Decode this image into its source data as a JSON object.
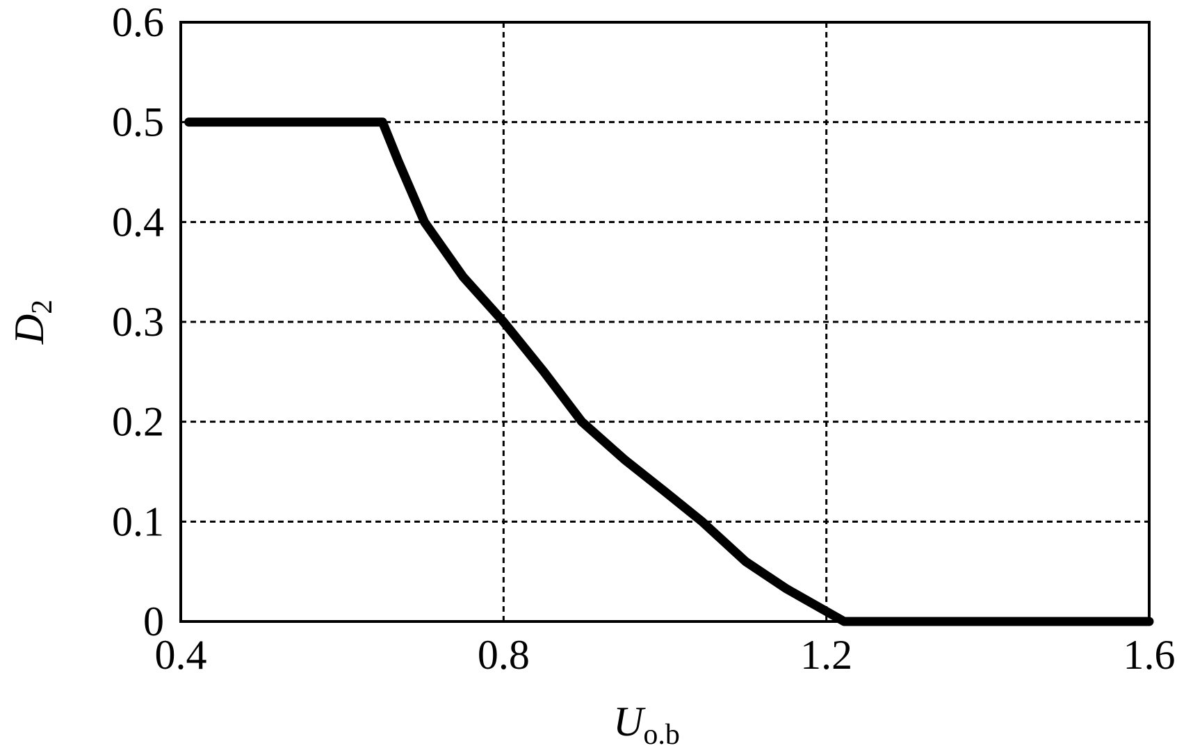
{
  "chart_data": {
    "type": "line",
    "xlabel": "U",
    "xlabel_sub": "o.b",
    "ylabel": "D",
    "ylabel_sub": "2",
    "x": [
      0.41,
      0.65,
      0.67,
      0.702,
      0.75,
      0.8,
      0.85,
      0.897,
      0.95,
      1.0,
      1.046,
      1.1,
      1.15,
      1.222,
      1.6
    ],
    "series": [
      {
        "color": "#000000",
        "values": [
          0.5,
          0.5,
          0.46,
          0.4,
          0.345,
          0.3,
          0.25,
          0.2,
          0.162,
          0.13,
          0.1,
          0.06,
          0.033,
          0,
          0
        ]
      }
    ],
    "xlim": [
      0.4,
      1.6
    ],
    "xticks": [
      0.4,
      0.8,
      1.2,
      1.6
    ],
    "ylim": [
      0,
      0.6
    ],
    "yticks": [
      0,
      0.1,
      0.2,
      0.3,
      0.4,
      0.5,
      0.6
    ],
    "grid": true
  }
}
